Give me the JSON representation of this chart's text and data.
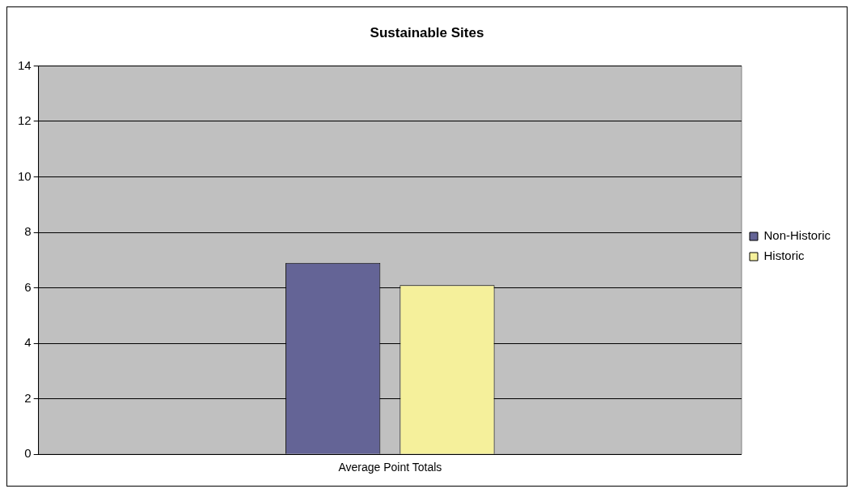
{
  "chart_data": {
    "type": "bar",
    "title": "Sustainable Sites",
    "categories": [
      "Average Point Totals"
    ],
    "series": [
      {
        "name": "Non-Historic",
        "color": "#646496",
        "values": [
          6.9
        ]
      },
      {
        "name": "Historic",
        "color": "#f5f09b",
        "values": [
          6.1
        ]
      }
    ],
    "ylim": [
      0,
      14
    ],
    "yticks": [
      0,
      2,
      4,
      6,
      8,
      10,
      12,
      14
    ],
    "grid": "y",
    "legend": "right"
  }
}
